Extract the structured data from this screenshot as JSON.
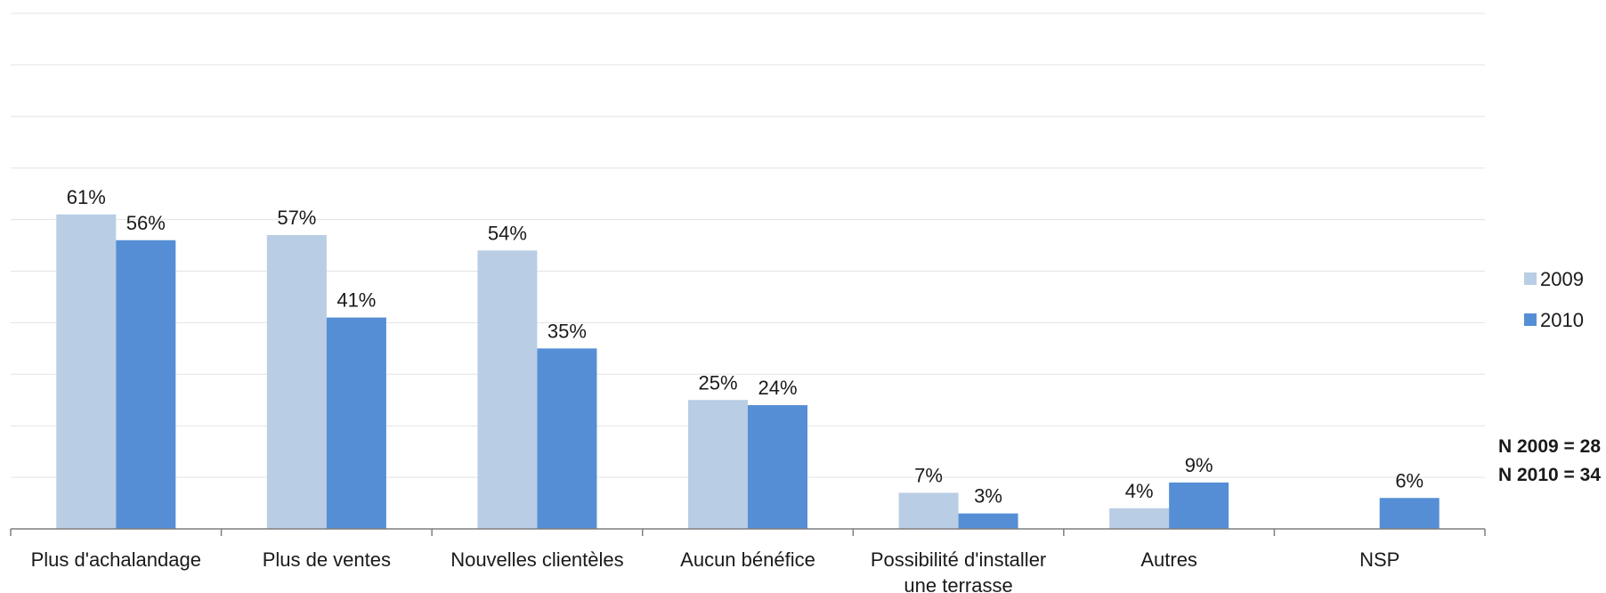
{
  "chart_data": {
    "type": "bar",
    "categories": [
      [
        "Plus d'achalandage"
      ],
      [
        "Plus de ventes"
      ],
      [
        "Nouvelles clientèles"
      ],
      [
        "Aucun bénéfice"
      ],
      [
        "Possibilité d'installer",
        "une terrasse"
      ],
      [
        "Autres"
      ],
      [
        "NSP"
      ]
    ],
    "series": [
      {
        "name": "2009",
        "values": [
          61,
          57,
          54,
          25,
          7,
          4,
          null
        ],
        "labels": [
          "61%",
          "57%",
          "54%",
          "25%",
          "7%",
          "4%",
          ""
        ]
      },
      {
        "name": "2010",
        "values": [
          56,
          41,
          35,
          24,
          3,
          9,
          6
        ],
        "labels": [
          "56%",
          "41%",
          "35%",
          "24%",
          "3%",
          "9%",
          "6%"
        ]
      }
    ],
    "ylim": [
      0,
      100
    ],
    "grid": true,
    "legend_position": "right",
    "colors": {
      "2009": "#b9cde4",
      "2010": "#558ed5",
      "grid": "#e3e3e3",
      "axis": "#7f7f7f"
    }
  },
  "notes": [
    "N 2009 = 28",
    "N 2010 = 34"
  ]
}
